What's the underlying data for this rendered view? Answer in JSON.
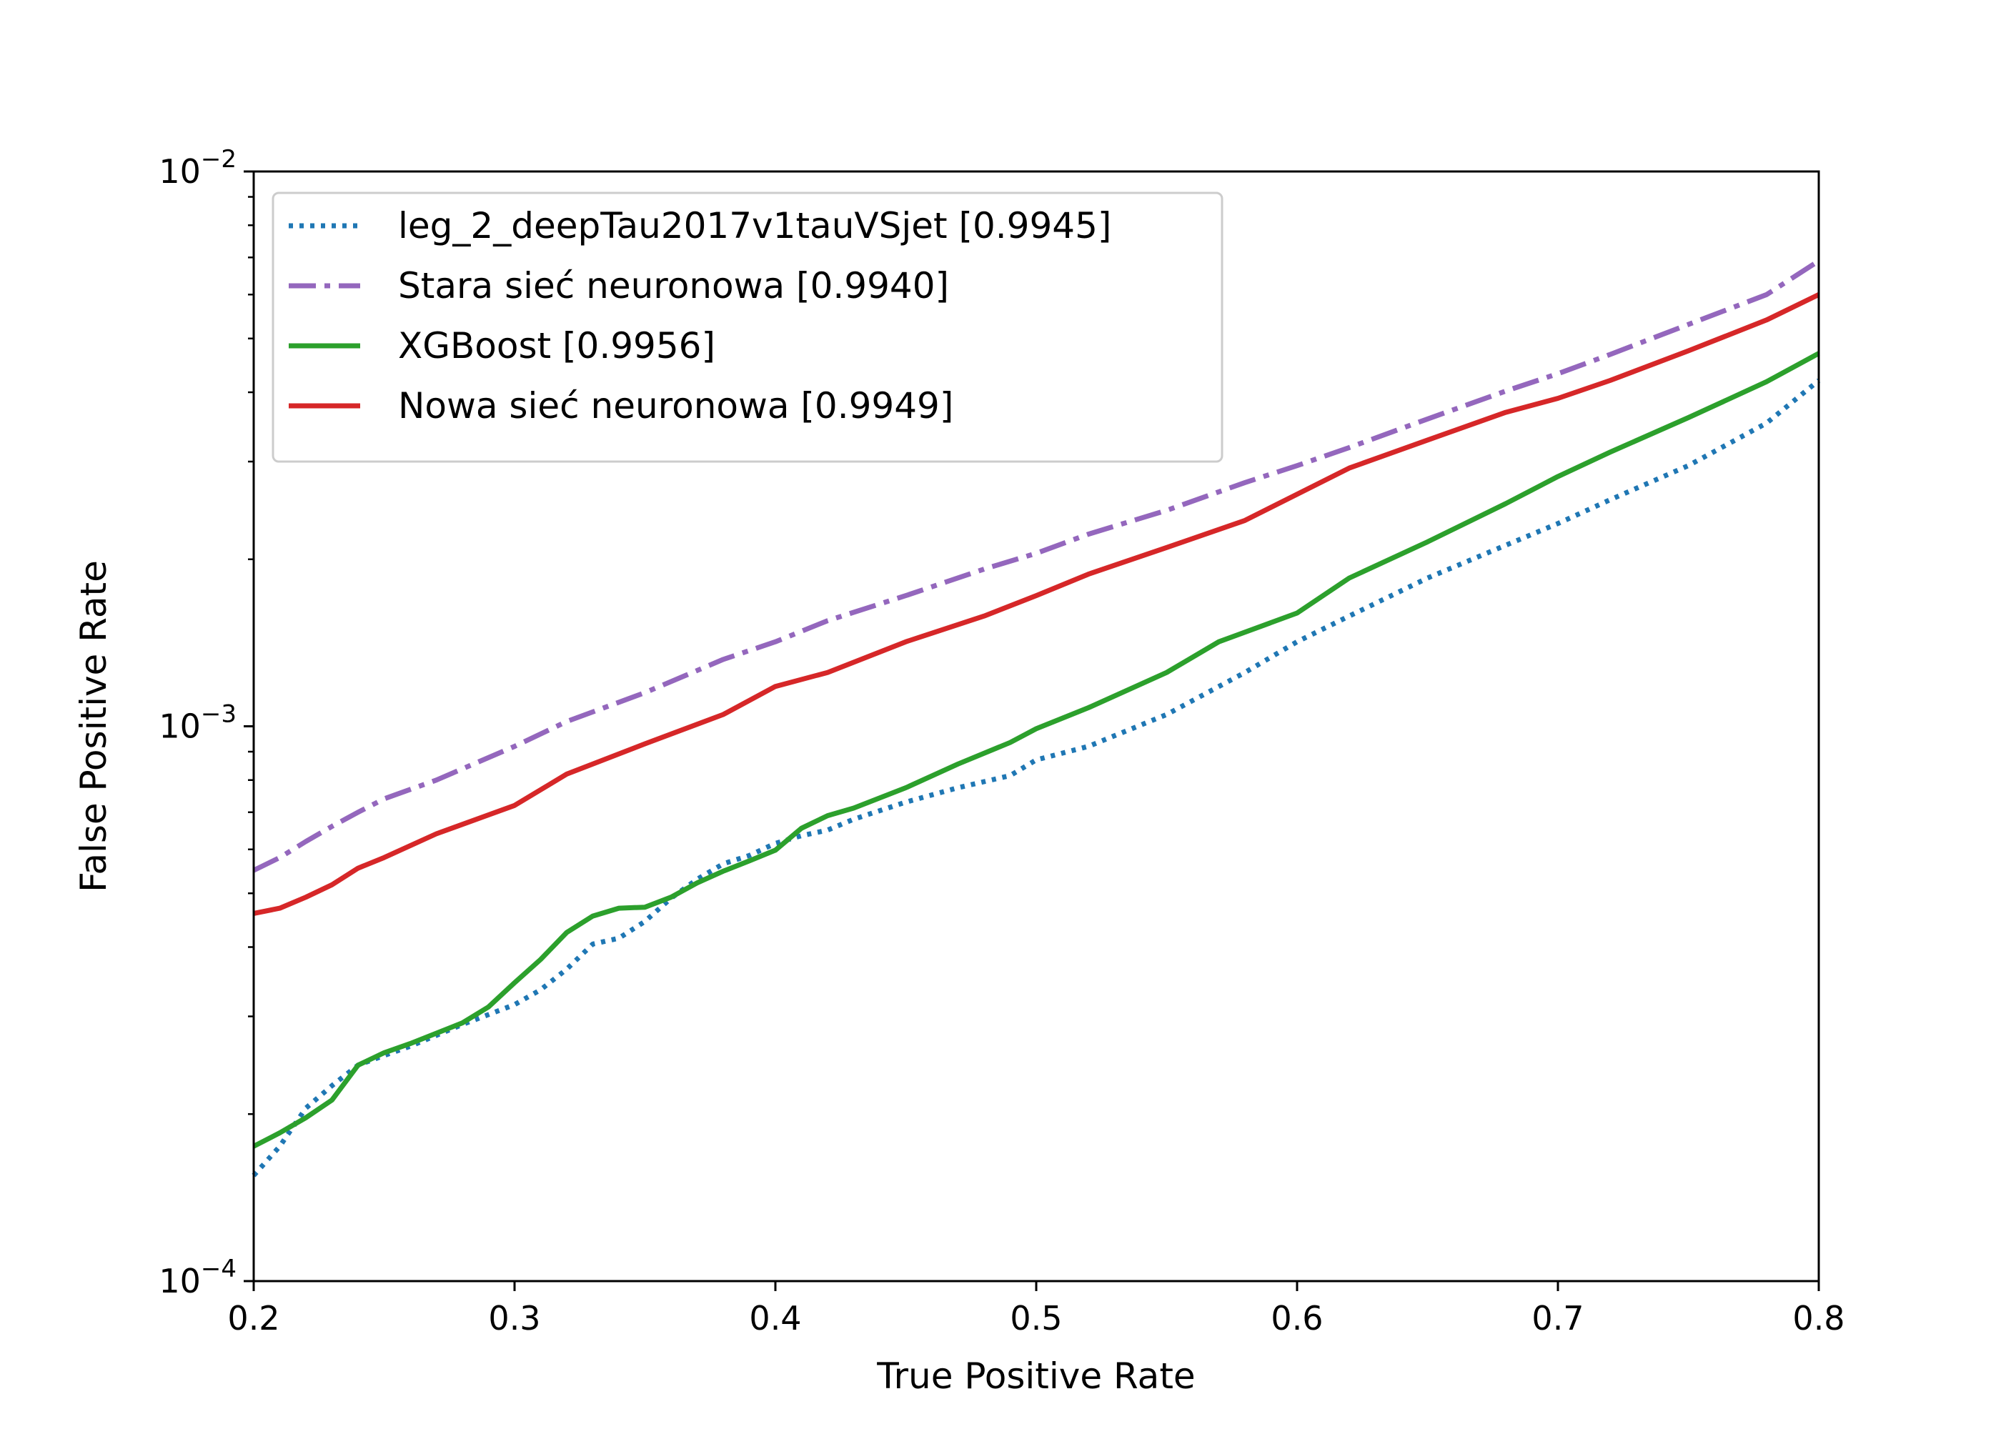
{
  "chart_data": {
    "type": "line",
    "xlabel": "True Positive Rate",
    "ylabel": "False Positive Rate",
    "xlim": [
      0.2,
      0.8
    ],
    "ylim": [
      0.0001,
      0.01
    ],
    "yscale": "log",
    "grid": false,
    "legend_position": "top-left",
    "x_ticks": [
      {
        "value": 0.2,
        "label": "0.2"
      },
      {
        "value": 0.3,
        "label": "0.3"
      },
      {
        "value": 0.4,
        "label": "0.4"
      },
      {
        "value": 0.5,
        "label": "0.5"
      },
      {
        "value": 0.6,
        "label": "0.6"
      },
      {
        "value": 0.7,
        "label": "0.7"
      },
      {
        "value": 0.8,
        "label": "0.8"
      }
    ],
    "y_ticks": [
      {
        "value": 0.0001,
        "base": "10",
        "exp": "−4"
      },
      {
        "value": 0.001,
        "base": "10",
        "exp": "−3"
      },
      {
        "value": 0.01,
        "base": "10",
        "exp": "−2"
      }
    ],
    "series": [
      {
        "name": "leg_2_deepTau2017v1tauVSjet [0.9945]",
        "color": "#1f77b4",
        "style": "dotted",
        "x": [
          0.2,
          0.21,
          0.22,
          0.23,
          0.24,
          0.25,
          0.26,
          0.28,
          0.3,
          0.31,
          0.32,
          0.33,
          0.34,
          0.35,
          0.36,
          0.37,
          0.38,
          0.39,
          0.4,
          0.41,
          0.42,
          0.43,
          0.45,
          0.47,
          0.49,
          0.5,
          0.52,
          0.55,
          0.58,
          0.6,
          0.62,
          0.65,
          0.68,
          0.7,
          0.72,
          0.75,
          0.78,
          0.8
        ],
        "y": [
          0.000155,
          0.000175,
          0.000205,
          0.000225,
          0.000245,
          0.000255,
          0.000265,
          0.00029,
          0.000315,
          0.000335,
          0.000365,
          0.000405,
          0.000415,
          0.000445,
          0.00049,
          0.00053,
          0.000565,
          0.000585,
          0.000615,
          0.000635,
          0.00065,
          0.00068,
          0.00073,
          0.000775,
          0.000815,
          0.00087,
          0.00092,
          0.00105,
          0.00125,
          0.00142,
          0.00158,
          0.00185,
          0.00212,
          0.00232,
          0.00256,
          0.00295,
          0.00352,
          0.0042
        ]
      },
      {
        "name": "Stara sieć neuronowa [0.9940]",
        "color": "#9467bd",
        "style": "dashdot",
        "x": [
          0.2,
          0.21,
          0.22,
          0.23,
          0.24,
          0.25,
          0.27,
          0.3,
          0.32,
          0.35,
          0.38,
          0.4,
          0.42,
          0.45,
          0.48,
          0.5,
          0.52,
          0.55,
          0.58,
          0.6,
          0.62,
          0.65,
          0.68,
          0.7,
          0.72,
          0.75,
          0.78,
          0.8
        ],
        "y": [
          0.00055,
          0.00058,
          0.00062,
          0.00066,
          0.0007,
          0.00074,
          0.0008,
          0.00092,
          0.00102,
          0.00115,
          0.00132,
          0.00142,
          0.00155,
          0.00172,
          0.00192,
          0.00205,
          0.00222,
          0.00245,
          0.00275,
          0.00295,
          0.00318,
          0.00358,
          0.00402,
          0.00432,
          0.00468,
          0.0053,
          0.006,
          0.0069
        ]
      },
      {
        "name": "XGBoost [0.9956]",
        "color": "#2ca02c",
        "style": "solid",
        "x": [
          0.2,
          0.21,
          0.22,
          0.23,
          0.24,
          0.25,
          0.26,
          0.28,
          0.29,
          0.3,
          0.31,
          0.32,
          0.33,
          0.34,
          0.35,
          0.36,
          0.37,
          0.38,
          0.39,
          0.4,
          0.41,
          0.42,
          0.43,
          0.45,
          0.47,
          0.49,
          0.5,
          0.52,
          0.55,
          0.57,
          0.6,
          0.62,
          0.65,
          0.68,
          0.7,
          0.72,
          0.75,
          0.78,
          0.8
        ],
        "y": [
          0.000175,
          0.000185,
          0.000197,
          0.000212,
          0.000245,
          0.000258,
          0.000268,
          0.000292,
          0.000312,
          0.000345,
          0.00038,
          0.000425,
          0.000455,
          0.00047,
          0.000472,
          0.000492,
          0.000522,
          0.000548,
          0.000572,
          0.000598,
          0.000655,
          0.00069,
          0.000712,
          0.000775,
          0.000855,
          0.000935,
          0.00099,
          0.00108,
          0.00125,
          0.00142,
          0.0016,
          0.00185,
          0.00215,
          0.00252,
          0.00282,
          0.00312,
          0.0036,
          0.00418,
          0.0047
        ]
      },
      {
        "name": "Nowa sieć neuronowa [0.9949]",
        "color": "#d62728",
        "style": "solid",
        "x": [
          0.2,
          0.21,
          0.22,
          0.23,
          0.24,
          0.25,
          0.27,
          0.3,
          0.32,
          0.35,
          0.38,
          0.4,
          0.42,
          0.45,
          0.48,
          0.5,
          0.52,
          0.55,
          0.58,
          0.6,
          0.62,
          0.65,
          0.68,
          0.7,
          0.72,
          0.75,
          0.78,
          0.8
        ],
        "y": [
          0.00046,
          0.00047,
          0.000492,
          0.000518,
          0.000555,
          0.00058,
          0.00064,
          0.00072,
          0.00082,
          0.00093,
          0.00105,
          0.00118,
          0.00125,
          0.00142,
          0.00158,
          0.00172,
          0.00188,
          0.0021,
          0.00235,
          0.00262,
          0.00292,
          0.00328,
          0.00368,
          0.0039,
          0.0042,
          0.00475,
          0.0054,
          0.006
        ]
      }
    ]
  }
}
